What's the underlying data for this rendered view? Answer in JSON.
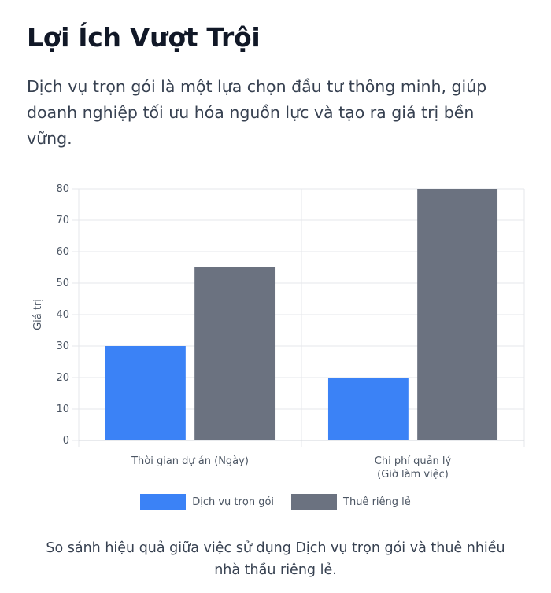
{
  "heading": "Lợi Ích Vượt Trội",
  "intro": "Dịch vụ trọn gói là một lựa chọn đầu tư thông minh, giúp doanh nghiệp tối ưu hóa nguồn lực và tạo ra giá trị bền vững.",
  "caption": "So sánh hiệu quả giữa việc sử dụng Dịch vụ trọn gói và thuê nhiều nhà thầu riêng lẻ.",
  "chart_data": {
    "type": "bar",
    "categories": [
      [
        "Thời gian dự án (Ngày)"
      ],
      [
        "Chi phí quản lý",
        "(Giờ làm việc)"
      ]
    ],
    "series": [
      {
        "name": "Dịch vụ trọn gói",
        "values": [
          30,
          20
        ],
        "color": "#3b82f6"
      },
      {
        "name": "Thuê riêng lẻ",
        "values": [
          55,
          80
        ],
        "color": "#6b7280"
      }
    ],
    "ylabel": "Giá trị",
    "xlabel": "",
    "ylim": [
      0,
      80
    ],
    "yticks": [
      0,
      10,
      20,
      30,
      40,
      50,
      60,
      70,
      80
    ],
    "grid": true,
    "legend_position": "bottom"
  }
}
